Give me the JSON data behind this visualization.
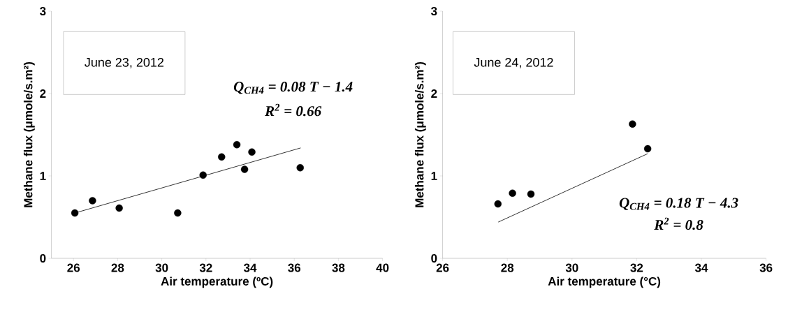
{
  "chart_data": [
    {
      "type": "scatter",
      "xlabel": "Air temperature (ºC)",
      "ylabel": "Methane flux (μmole/s.m²)",
      "xlim": [
        25,
        40
      ],
      "xticks": [
        26,
        28,
        30,
        32,
        34,
        36,
        38,
        40
      ],
      "ylim": [
        0,
        3
      ],
      "yticks": [
        0,
        1,
        2,
        3
      ],
      "annotations": [
        "June 23, 2012",
        "Q$_{CH4}$ = 0.08 T − 1.4",
        "R$^{2}$ = 0.66"
      ],
      "series": [
        {
          "color": "#000000",
          "marker": "circle",
          "x": [
            26.06,
            26.86,
            28.07,
            30.72,
            31.87,
            32.71,
            33.4,
            34.08,
            33.75,
            36.27
          ],
          "values": [
            0.55,
            0.7,
            0.61,
            0.55,
            1.01,
            1.23,
            1.38,
            1.29,
            1.08,
            1.1
          ]
        },
        {
          "type": "line",
          "color": "#000000",
          "marker": "none",
          "x": [
            26.06,
            36.29
          ],
          "values": [
            0.55,
            1.34
          ]
        }
      ]
    },
    {
      "type": "scatter",
      "xlabel": "Air temperature (°C)",
      "ylabel": "Methane flux (μmole/s.m²)",
      "xlim": [
        26,
        36
      ],
      "xticks": [
        26,
        28,
        30,
        32,
        34,
        36
      ],
      "ylim": [
        0,
        3
      ],
      "yticks": [
        0,
        1,
        2,
        3
      ],
      "annotations": [
        "June 24, 2012",
        "Q$_{CH4}$ = 0.18 T − 4.3",
        "R$^{2}$ = 0.8"
      ],
      "series": [
        {
          "color": "#000000",
          "marker": "circle",
          "x": [
            27.71,
            28.16,
            28.73,
            31.87,
            32.34
          ],
          "values": [
            0.66,
            0.79,
            0.78,
            1.63,
            1.33
          ]
        },
        {
          "type": "line",
          "color": "#000000",
          "marker": "none",
          "x": [
            27.72,
            32.34
          ],
          "values": [
            0.44,
            1.27
          ]
        }
      ]
    }
  ]
}
